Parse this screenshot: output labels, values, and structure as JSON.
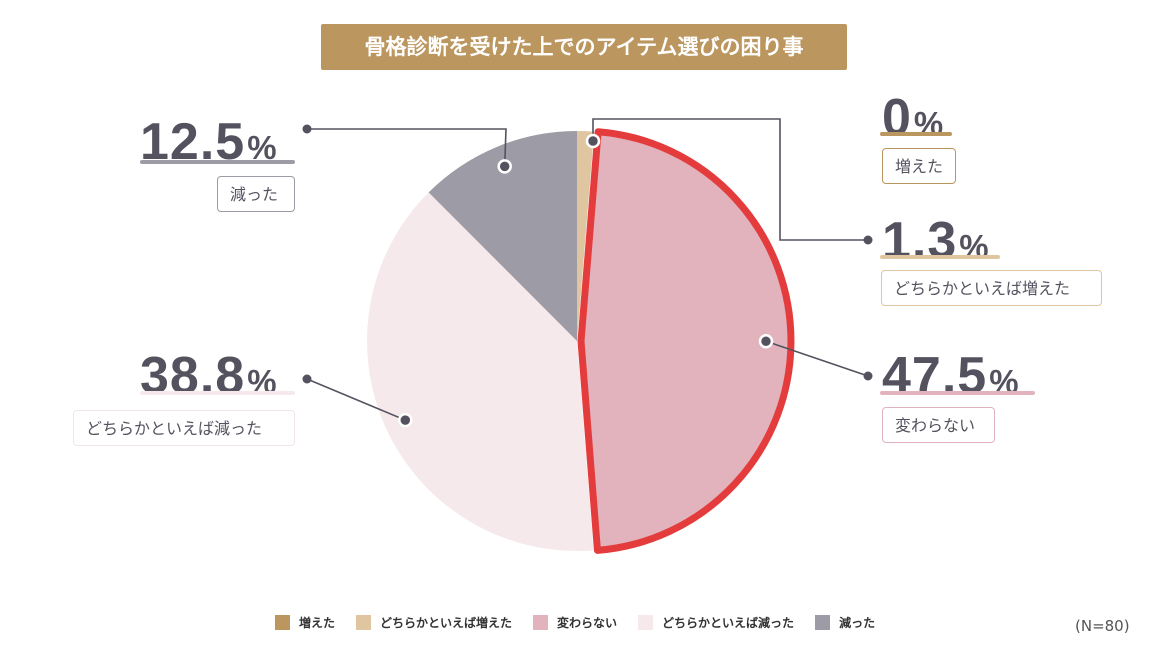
{
  "title": "骨格診断を受けた上でのアイテム選びの困り事",
  "note": "(N=80)",
  "colors": {
    "increased": "#bb965e",
    "somewhat_increased": "#dfc6a0",
    "unchanged": "#e2b3bd",
    "somewhat_decreased": "#f6e9ec",
    "decreased": "#9d9ba5",
    "highlight": "#e43c3c",
    "text": "#55525f"
  },
  "chart_data": {
    "type": "pie",
    "title": "骨格診断を受けた上でのアイテム選びの困り事",
    "n_label": "(N=80)",
    "legend_position": "bottom",
    "highlighted": "変わらない",
    "slices": [
      {
        "label": "増えた",
        "value": 0,
        "display": "0",
        "unit": "%"
      },
      {
        "label": "どちらかといえば増えた",
        "value": 1.3,
        "display": "1.3",
        "unit": "%"
      },
      {
        "label": "変わらない",
        "value": 47.5,
        "display": "47.5",
        "unit": "%"
      },
      {
        "label": "どちらかといえば減った",
        "value": 38.8,
        "display": "38.8",
        "unit": "%"
      },
      {
        "label": "減った",
        "value": 12.5,
        "display": "12.5",
        "unit": "%"
      }
    ]
  }
}
